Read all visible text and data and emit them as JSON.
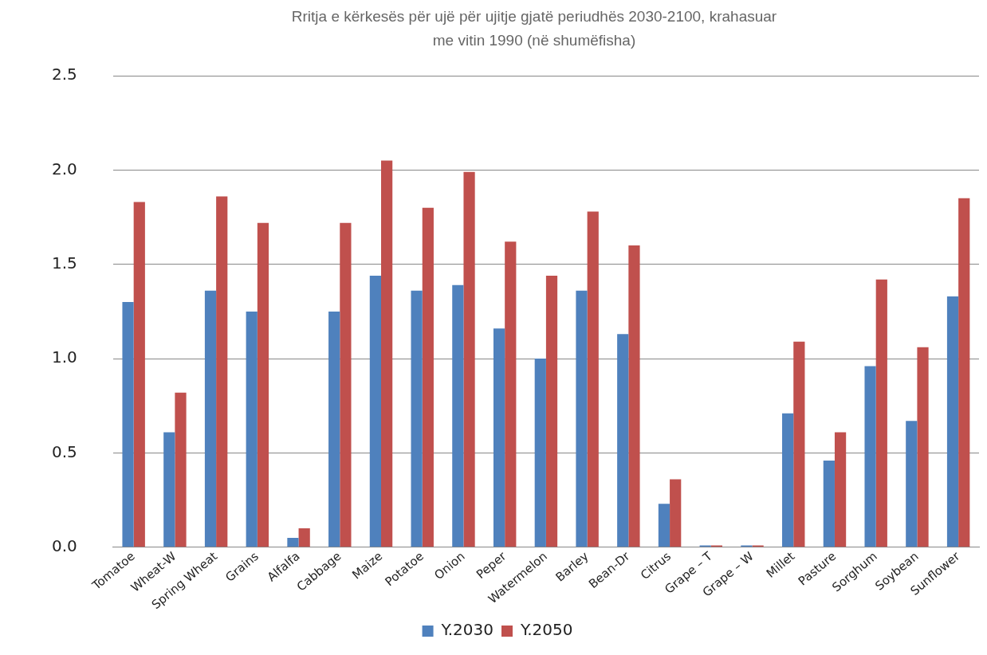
{
  "chart_data": {
    "type": "bar",
    "title": "Rritja e kërkesës për ujë për ujitje gjatë periudhës 2030-2100, krahasuar me vitin 1990 (në shumëfisha)",
    "categories": [
      "Tomatoe",
      "Wheat-W",
      "Spring Wheat",
      "Grains",
      "Alfalfa",
      "Cabbage",
      "Maize",
      "Potatoe",
      "Onion",
      "Peper",
      "Watermelon",
      "Barley",
      "Bean-Dr",
      "Citrus",
      "Grape – T",
      "Grape – W",
      "Millet",
      "Pasture",
      "Sorghum",
      "Soybean",
      "Sunflower"
    ],
    "series": [
      {
        "name": "Y.2030",
        "color": "#4f81bd",
        "values": [
          1.3,
          0.61,
          1.36,
          1.25,
          0.05,
          1.25,
          1.44,
          1.36,
          1.39,
          1.16,
          1.0,
          1.36,
          1.13,
          0.23,
          0.01,
          0.01,
          0.71,
          0.46,
          0.96,
          0.67,
          1.33
        ]
      },
      {
        "name": "Y.2050",
        "color": "#c0504d",
        "values": [
          1.83,
          0.82,
          1.86,
          1.72,
          0.1,
          1.72,
          2.05,
          1.8,
          1.99,
          1.62,
          1.44,
          1.78,
          1.6,
          0.36,
          0.01,
          0.01,
          1.09,
          0.61,
          1.42,
          1.06,
          1.85
        ]
      }
    ],
    "ylim": [
      0,
      2.5
    ],
    "yticks": [
      {
        "value": 0,
        "label": "0.0"
      },
      {
        "value": 0.5,
        "label": "0.5"
      },
      {
        "value": 1,
        "label": "1.0"
      },
      {
        "value": 1.5,
        "label": "1.5"
      },
      {
        "value": 2,
        "label": "2.0"
      },
      {
        "value": 2.5,
        "label": "2.5"
      }
    ],
    "grid": "y",
    "legend": "bottom"
  }
}
